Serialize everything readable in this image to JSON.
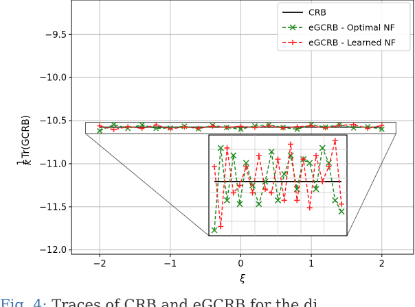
{
  "chart_data": {
    "type": "line",
    "xlabel": "ξ",
    "ylabel": "Tr(GCRB)",
    "ylabel_prefix": {
      "numerator": "1",
      "denominator": "k"
    },
    "xlim": [
      -2.4,
      2.45
    ],
    "ylim": [
      -12.05,
      -9.1
    ],
    "xticks": [
      -2,
      -1,
      0,
      1,
      2
    ],
    "xtick_labels": [
      "−2",
      "−1",
      "0",
      "1",
      "2"
    ],
    "yticks": [
      -12.0,
      -11.5,
      -11.0,
      -10.5,
      -10.0,
      -9.5
    ],
    "ytick_labels": [
      "−12.0",
      "−11.5",
      "−11.0",
      "−10.5",
      "−10.0",
      "−9.5"
    ],
    "grid": true,
    "legend_position": "top-right",
    "series": [
      {
        "name": "CRB",
        "color": "#000000",
        "style": "solid",
        "marker": "none",
        "x": [
          -2.0,
          2.0
        ],
        "y": [
          -10.575,
          -10.575
        ]
      },
      {
        "name": "eGCRB - Optimal NF",
        "color": "#228b22",
        "style": "dashed",
        "marker": "x",
        "x": [
          -2.0,
          -1.8,
          -1.6,
          -1.4,
          -1.2,
          -1.0,
          -0.8,
          -0.6,
          -0.4,
          -0.2,
          0.0,
          0.2,
          0.4,
          0.6,
          0.8,
          1.0,
          1.2,
          1.4,
          1.6,
          1.8,
          2.0
        ],
        "y": [
          -10.618,
          -10.545,
          -10.59,
          -10.548,
          -10.59,
          -10.585,
          -10.565,
          -10.595,
          -10.555,
          -10.58,
          -10.6,
          -10.56,
          -10.548,
          -10.58,
          -10.6,
          -10.545,
          -10.575,
          -10.545,
          -10.585,
          -10.57,
          -10.6
        ]
      },
      {
        "name": "eGCRB - Learned NF",
        "color": "#ff2020",
        "style": "dashed",
        "marker": "+",
        "x": [
          -2.0,
          -1.8,
          -1.6,
          -1.4,
          -1.2,
          -1.0,
          -0.8,
          -0.6,
          -0.4,
          -0.2,
          0.0,
          0.2,
          0.4,
          0.6,
          0.8,
          1.0,
          1.2,
          1.4,
          1.6,
          1.8,
          2.0
        ],
        "y": [
          -10.56,
          -10.605,
          -10.57,
          -10.59,
          -10.55,
          -10.595,
          -10.575,
          -10.588,
          -10.565,
          -10.578,
          -10.565,
          -10.58,
          -10.56,
          -10.585,
          -10.57,
          -10.56,
          -10.585,
          -10.555,
          -10.545,
          -10.59,
          -10.555
        ]
      }
    ],
    "inset": {
      "zoom_xlim": [
        -2.2,
        2.2
      ],
      "zoom_ylim": [
        -10.65,
        -10.52
      ],
      "ylim": [
        -10.64,
        -10.52
      ],
      "optimal_y": [
        -10.64,
        -10.53,
        -10.6,
        -10.54,
        -10.605,
        -10.55,
        -10.58,
        -10.605,
        -10.575,
        -10.535,
        -10.6,
        -10.565,
        -10.54,
        -10.585,
        -10.545,
        -10.55,
        -10.585,
        -10.53,
        -10.55,
        -10.6,
        -10.615
      ],
      "learned_y": [
        -10.555,
        -10.635,
        -10.53,
        -10.59,
        -10.58,
        -10.555,
        -10.59,
        -10.54,
        -10.585,
        -10.59,
        -10.545,
        -10.6,
        -10.525,
        -10.6,
        -10.545,
        -10.61,
        -10.54,
        -10.575,
        -10.555,
        -10.52,
        -10.605
      ]
    }
  },
  "caption": {
    "label": "Fig. 4:",
    "text": "Traces of CRB and eGCRB for the di"
  }
}
